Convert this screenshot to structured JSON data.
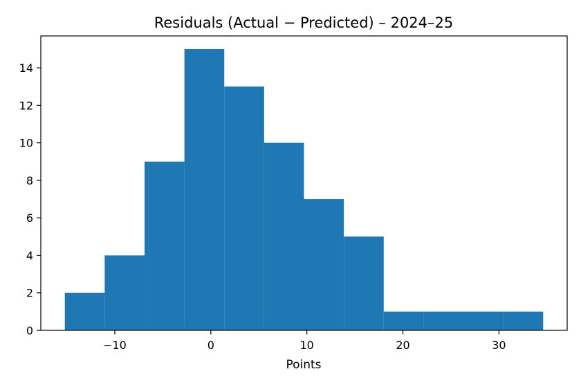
{
  "chart_data": {
    "type": "bar",
    "title": "Residuals (Actual − Predicted) – 2024–25",
    "xlabel": "Points",
    "ylabel": "",
    "bin_edges": [
      -15.2,
      -11.05,
      -6.9,
      -2.75,
      1.4,
      5.55,
      9.7,
      13.85,
      18.0,
      22.15,
      26.3,
      30.45,
      34.6
    ],
    "counts": [
      2,
      4,
      9,
      15,
      13,
      10,
      7,
      5,
      1,
      1,
      1,
      1
    ],
    "xlim": [
      -17.7,
      37.1
    ],
    "ylim": [
      0,
      15.7
    ],
    "xticks": [
      -10,
      0,
      10,
      20,
      30
    ],
    "xtick_labels": [
      "−10",
      "0",
      "10",
      "20",
      "30"
    ],
    "yticks": [
      0,
      2,
      4,
      6,
      8,
      10,
      12,
      14
    ],
    "ytick_labels": [
      "0",
      "2",
      "4",
      "6",
      "8",
      "10",
      "12",
      "14"
    ],
    "grid": false,
    "bar_color": "#1f77b4"
  }
}
